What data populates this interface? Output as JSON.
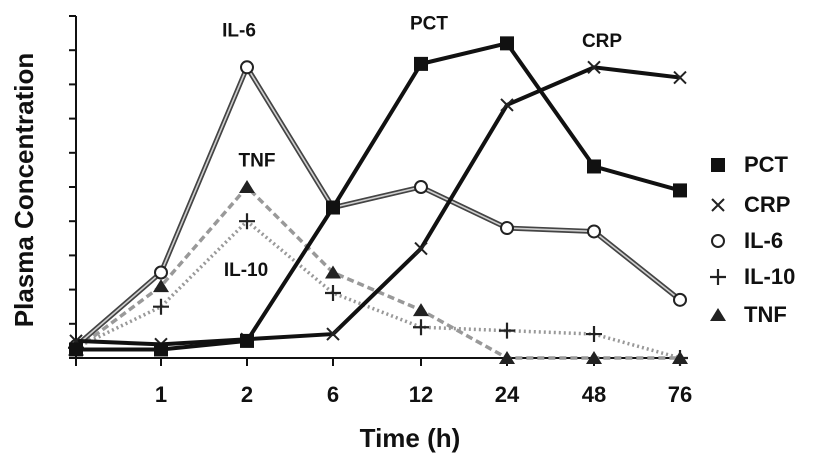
{
  "chart_data": {
    "type": "line",
    "title": "",
    "xlabel": "Time (h)",
    "ylabel": "Plasma Concentration",
    "categories": [
      "",
      "1",
      "2",
      "6",
      "12",
      "24",
      "48",
      "76"
    ],
    "ylim": [
      0,
      10
    ],
    "y_tick_count": 10,
    "y_tick_labels": false,
    "grid": false,
    "legend_position": "right",
    "series": [
      {
        "name": "PCT",
        "values": [
          0.25,
          0.25,
          0.5,
          4.4,
          8.6,
          9.2,
          5.6,
          4.9
        ],
        "color": "#111111",
        "dash": "solid",
        "marker": "square"
      },
      {
        "name": "CRP",
        "values": [
          0.5,
          0.4,
          0.55,
          0.7,
          3.2,
          7.4,
          8.5,
          8.2
        ],
        "color": "#111111",
        "dash": "solid",
        "marker": "x"
      },
      {
        "name": "IL-6",
        "values": [
          0.35,
          2.5,
          8.5,
          4.4,
          5.0,
          3.8,
          3.7,
          1.7
        ],
        "color": "#777777",
        "dash": "double",
        "marker": "circle"
      },
      {
        "name": "IL-10",
        "values": [
          0.3,
          1.5,
          4.0,
          1.9,
          0.9,
          0.8,
          0.7,
          0.0
        ],
        "color": "#999999",
        "dash": "dotted",
        "marker": "plus"
      },
      {
        "name": "TNF",
        "values": [
          0.25,
          2.1,
          5.0,
          2.5,
          1.4,
          0.0,
          0.0,
          0.0
        ],
        "color": "#999999",
        "dash": "dashed",
        "marker": "triangle"
      }
    ],
    "annotations": [
      {
        "text": "IL-6",
        "x": "2",
        "y": 9.4
      },
      {
        "text": "PCT",
        "x": "12",
        "y": 9.6
      },
      {
        "text": "CRP",
        "x": "48",
        "y": 9.1
      },
      {
        "text": "TNF",
        "x": "2",
        "y": 5.6
      },
      {
        "text": "IL-10",
        "x": "2",
        "y": 2.4
      }
    ]
  }
}
